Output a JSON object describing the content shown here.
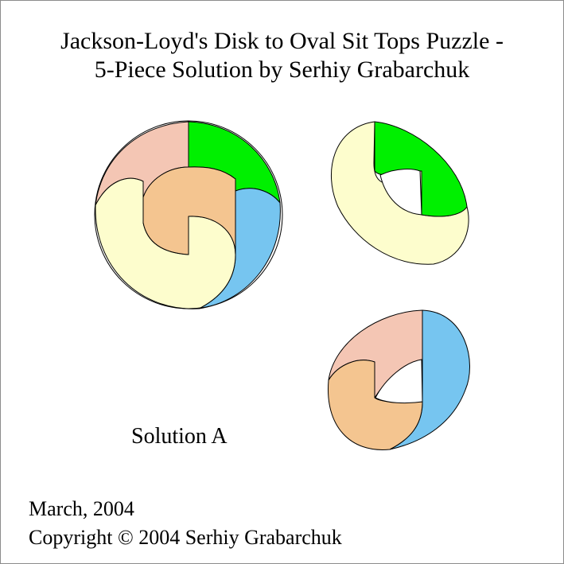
{
  "title": {
    "line1": "Jackson-Loyd's Disk to Oval Sit Tops Puzzle -",
    "line2": "5-Piece Solution by Serhiy Grabarchuk"
  },
  "solution_label": "Solution A",
  "footer": {
    "date": "March, 2004",
    "copyright": "Copyright © 2004 Serhiy Grabarchuk"
  },
  "colors": {
    "salmon": "#f4c6b4",
    "green": "#00f000",
    "blue": "#76c5f0",
    "cream": "#fdfdcd",
    "orange": "#f4c590",
    "outline": "#000000"
  }
}
